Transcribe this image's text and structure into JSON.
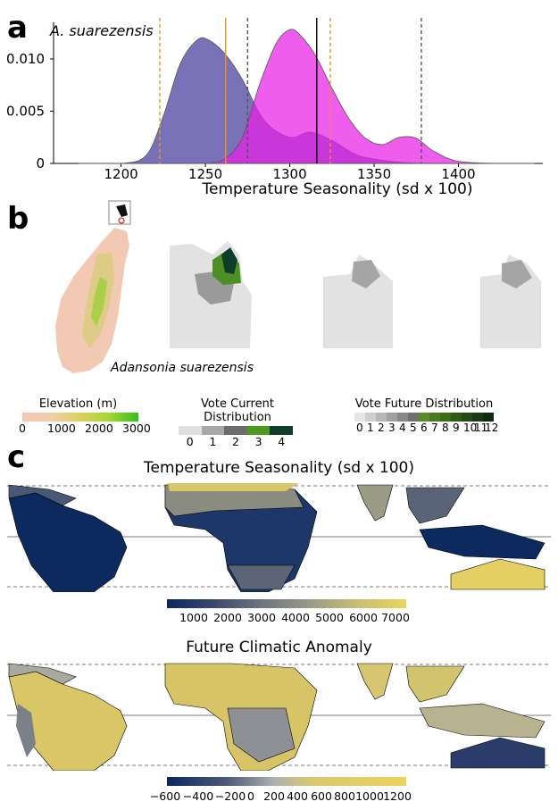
{
  "panels": {
    "a": "a",
    "b": "b",
    "c": "c"
  },
  "chart_data": [
    {
      "type": "area",
      "panel": "a",
      "title": "A. suarezensis",
      "xlabel": "Temperature Seasonality (sd x 100)",
      "ylabel": "",
      "xlim": [
        1160,
        1450
      ],
      "ylim": [
        0,
        0.0135
      ],
      "xticks": [
        1200,
        1250,
        1300,
        1350,
        1400
      ],
      "yticks": [
        0,
        0.005,
        0.01
      ],
      "ytick_labels": [
        "0",
        "0.005",
        "0.010"
      ],
      "series": [
        {
          "color": "#6a63b0",
          "x": [
            1175,
            1200,
            1215,
            1225,
            1235,
            1245,
            1252,
            1262,
            1272,
            1285,
            1300,
            1312,
            1325,
            1340,
            1360,
            1380,
            1400,
            1425,
            1445
          ],
          "y": [
            0.0,
            0.0,
            0.0008,
            0.0045,
            0.0095,
            0.0118,
            0.0118,
            0.0104,
            0.008,
            0.0041,
            0.0025,
            0.003,
            0.0022,
            0.0008,
            0.0002,
            0.0,
            0.0,
            0.0,
            0.0
          ]
        },
        {
          "color": "#e81fe8",
          "x": [
            1175,
            1200,
            1225,
            1250,
            1262,
            1272,
            1282,
            1292,
            1300,
            1306,
            1315,
            1325,
            1335,
            1345,
            1355,
            1365,
            1375,
            1385,
            1400,
            1425,
            1445
          ],
          "y": [
            0.0,
            0.0,
            0.0,
            0.0,
            0.0005,
            0.0025,
            0.0075,
            0.0115,
            0.0128,
            0.0123,
            0.0104,
            0.0072,
            0.0043,
            0.0024,
            0.0018,
            0.0025,
            0.0024,
            0.0012,
            0.0002,
            0.0,
            0.0
          ]
        }
      ],
      "vlines": [
        {
          "x": 1223,
          "style": "dashed",
          "color": "#f0921a"
        },
        {
          "x": 1262,
          "style": "solid",
          "color": "#f0921a"
        },
        {
          "x": 1275,
          "style": "dashed",
          "color": "#555555"
        },
        {
          "x": 1316,
          "style": "solid",
          "color": "#000000"
        },
        {
          "x": 1324,
          "style": "dashed",
          "color": "#f0921a"
        },
        {
          "x": 1378,
          "style": "dashed",
          "color": "#555555"
        }
      ]
    }
  ],
  "panel_b": {
    "species_label": "Adansonia suarezensis",
    "legends": [
      {
        "title": "Elevation (m)",
        "ticks": [
          "0",
          "1000",
          "2000",
          "3000"
        ],
        "colors": [
          "#f5c6b8",
          "#ecd0a8",
          "#d9d060",
          "#a6d632",
          "#2fbf1a"
        ]
      },
      {
        "title": "Vote Current Distribution",
        "ticks": [
          "0",
          "1",
          "2",
          "3",
          "4"
        ],
        "colors": [
          "#e0e0e0",
          "#a8a8a8",
          "#6c6c6c",
          "#4e9a1e",
          "#0f3d2a"
        ]
      },
      {
        "title": "Vote Future Distribution",
        "ticks": [
          "0",
          "1",
          "2",
          "3",
          "4",
          "5",
          "6",
          "7",
          "8",
          "9",
          "10",
          "11",
          "12"
        ],
        "colors": [
          "#e6e6e6",
          "#cfcfcf",
          "#b8b8b8",
          "#a0a0a0",
          "#888888",
          "#707070",
          "#5a8a2a",
          "#4a7a20",
          "#3c6b1a",
          "#2e5a18",
          "#234a16",
          "#1a3a14",
          "#102a10"
        ]
      }
    ]
  },
  "panel_c": {
    "maps": [
      {
        "title": "Temperature Seasonality (sd x 100)",
        "ticks": [
          "1000",
          "2000",
          "3000",
          "4000",
          "5000",
          "6000",
          "7000"
        ],
        "colors": [
          "#0b2660",
          "#3a4a6e",
          "#6f7480",
          "#9a9a86",
          "#c9bf74",
          "#ecd35a"
        ]
      },
      {
        "title": "Future Climatic Anomaly",
        "ticks": [
          "−600",
          "−400",
          "−200",
          "0",
          "200",
          "400",
          "600",
          "800",
          "1000",
          "1200"
        ],
        "colors": [
          "#0b2660",
          "#4d5a78",
          "#b0b0b0",
          "#d8c870",
          "#ecd35a"
        ]
      }
    ]
  }
}
